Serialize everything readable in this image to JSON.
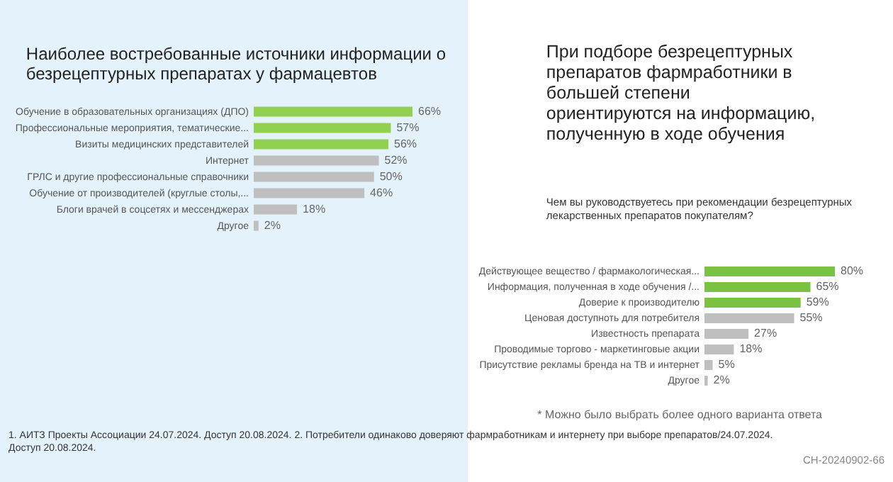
{
  "chart_data": [
    {
      "type": "bar",
      "orientation": "horizontal",
      "title": "Наиболее востребованные источники информации о безрецептурных препаратах у фармацевтов",
      "categories": [
        "Обучение в образовательных организациях (ДПО)",
        "Профессиональные мероприятия, тематические...",
        "Визиты медицинских представителей",
        "Интернет",
        "ГРЛС и другие профессиональные справочники",
        "Обучение от производителей (круглые столы,...",
        "Блоги врачей в соцсетях и мессенджерах",
        "Другое"
      ],
      "values": [
        66,
        57,
        56,
        52,
        50,
        46,
        18,
        2
      ],
      "colors": [
        "#92d050",
        "#92d050",
        "#92d050",
        "#bfbfbf",
        "#bfbfbf",
        "#bfbfbf",
        "#bfbfbf",
        "#bfbfbf"
      ],
      "value_labels": [
        "66%",
        "57%",
        "56%",
        "52%",
        "50%",
        "46%",
        "18%",
        "2%"
      ]
    },
    {
      "type": "bar",
      "orientation": "horizontal",
      "title": "При подборе безрецептурных препаратов фармработники в большей степени ориентируются на информацию, полученную в ходе обучения",
      "subtitle": "Чем вы руководствуетесь при рекомендации безрецептурных лекарственных препаратов покупателям?",
      "categories": [
        "Действующее вещество / фармакологическая...",
        "Информация, полученная в ходе обучения /...",
        "Доверие к производителю",
        "Ценовая доступноть  для потребителя",
        "Известность препарата",
        "Проводимые торгово - маркетинговые акции",
        "Присутствие рекламы бренда на ТВ и интернет",
        "Другое"
      ],
      "values": [
        80,
        65,
        59,
        55,
        27,
        18,
        5,
        2
      ],
      "colors": [
        "#7cc242",
        "#7cc242",
        "#7cc242",
        "#bfbfbf",
        "#bfbfbf",
        "#bfbfbf",
        "#bfbfbf",
        "#bfbfbf"
      ],
      "value_labels": [
        "80%",
        "65%",
        "59%",
        "55%",
        "27%",
        "18%",
        "5%",
        "2%"
      ],
      "annotations": [
        "* Можно было выбрать более одного варианта ответа",
        "1. АИТЗ Проекты Ассоциации 24.07.2024. Доступ 20.08.2024. 2. Потребители одинаково доверяют фармработникам и интернету при выборе препаратов/24.07.2024. Доступ 20.08.2024.",
        "CH-20240902-66"
      ]
    }
  ]
}
